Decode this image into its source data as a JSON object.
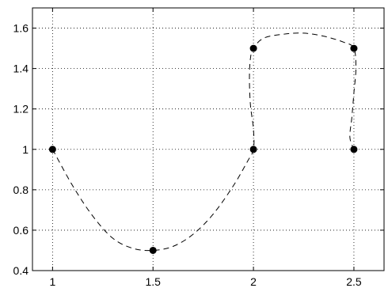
{
  "chart_data": {
    "type": "scatter",
    "title": "",
    "xlabel": "",
    "ylabel": "",
    "xlim": [
      0.9,
      2.65
    ],
    "ylim": [
      0.4,
      1.7
    ],
    "xticks": [
      1,
      1.5,
      2,
      2.5
    ],
    "xtick_labels": [
      "1",
      "1.5",
      "2",
      "2.5"
    ],
    "yticks": [
      0.4,
      0.6,
      0.8,
      1,
      1.2,
      1.4,
      1.6
    ],
    "ytick_labels": [
      "0.4",
      "0.6",
      "0.8",
      "1",
      "1.2",
      "1.4",
      "1.6"
    ],
    "grid": true,
    "series": [
      {
        "kind": "points",
        "marker": "filled-circle",
        "color": "#000000",
        "x": [
          1,
          1.5,
          2,
          2,
          2.5,
          2.5
        ],
        "y": [
          1,
          0.5,
          1,
          1.5,
          1.5,
          1
        ]
      },
      {
        "kind": "curve",
        "line_style": "dashed",
        "color": "#000000",
        "x": [
          1,
          1.1,
          1.2,
          1.3,
          1.4,
          1.5,
          1.6,
          1.7,
          1.8,
          1.9,
          1.97,
          2,
          2.0,
          1.985,
          1.98,
          1.985,
          2,
          2.05,
          2.15,
          2.25,
          2.35,
          2.45,
          2.5,
          2.51,
          2.5,
          2.49,
          2.48,
          2.5
        ],
        "y": [
          1,
          0.82,
          0.67,
          0.56,
          0.51,
          0.5,
          0.52,
          0.58,
          0.68,
          0.82,
          0.94,
          1,
          1.1,
          1.22,
          1.35,
          1.45,
          1.5,
          1.55,
          1.57,
          1.575,
          1.56,
          1.53,
          1.5,
          1.4,
          1.28,
          1.16,
          1.06,
          1
        ]
      }
    ]
  }
}
